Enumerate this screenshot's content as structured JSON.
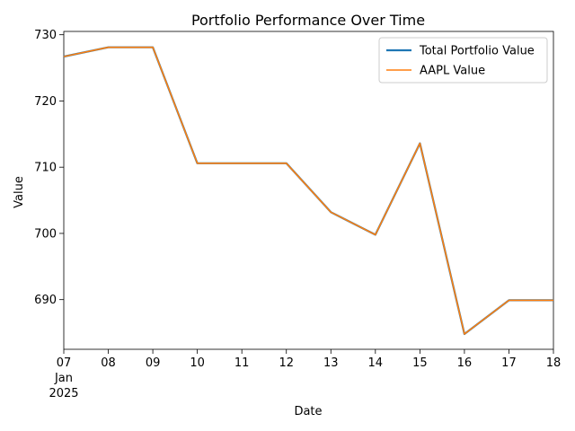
{
  "chart_data": {
    "type": "line",
    "title": "Portfolio Performance Over Time",
    "xlabel": "Date",
    "ylabel": "Value",
    "x": [
      "2025-01-07",
      "2025-01-08",
      "2025-01-09",
      "2025-01-10",
      "2025-01-11",
      "2025-01-12",
      "2025-01-13",
      "2025-01-14",
      "2025-01-15",
      "2025-01-16",
      "2025-01-17",
      "2025-01-18"
    ],
    "x_tick_labels": [
      "07",
      "08",
      "09",
      "10",
      "11",
      "12",
      "13",
      "14",
      "15",
      "16",
      "17",
      "18"
    ],
    "x_tick_sublabel": [
      "Jan",
      "2025"
    ],
    "y_ticks": [
      690,
      700,
      710,
      720,
      730
    ],
    "ylim": [
      682.5,
      730.5
    ],
    "series": [
      {
        "name": "Total Portfolio Value",
        "color": "#1f77b4",
        "values": [
          726.7,
          728.1,
          728.1,
          710.6,
          710.6,
          710.6,
          703.2,
          699.8,
          713.6,
          684.8,
          689.9,
          689.9
        ]
      },
      {
        "name": "AAPL Value",
        "color": "#ff7f0e",
        "values": [
          726.7,
          728.1,
          728.1,
          710.6,
          710.6,
          710.6,
          703.2,
          699.8,
          713.6,
          684.8,
          689.9,
          689.9
        ]
      }
    ],
    "legend_position": "upper right",
    "grid": false
  }
}
